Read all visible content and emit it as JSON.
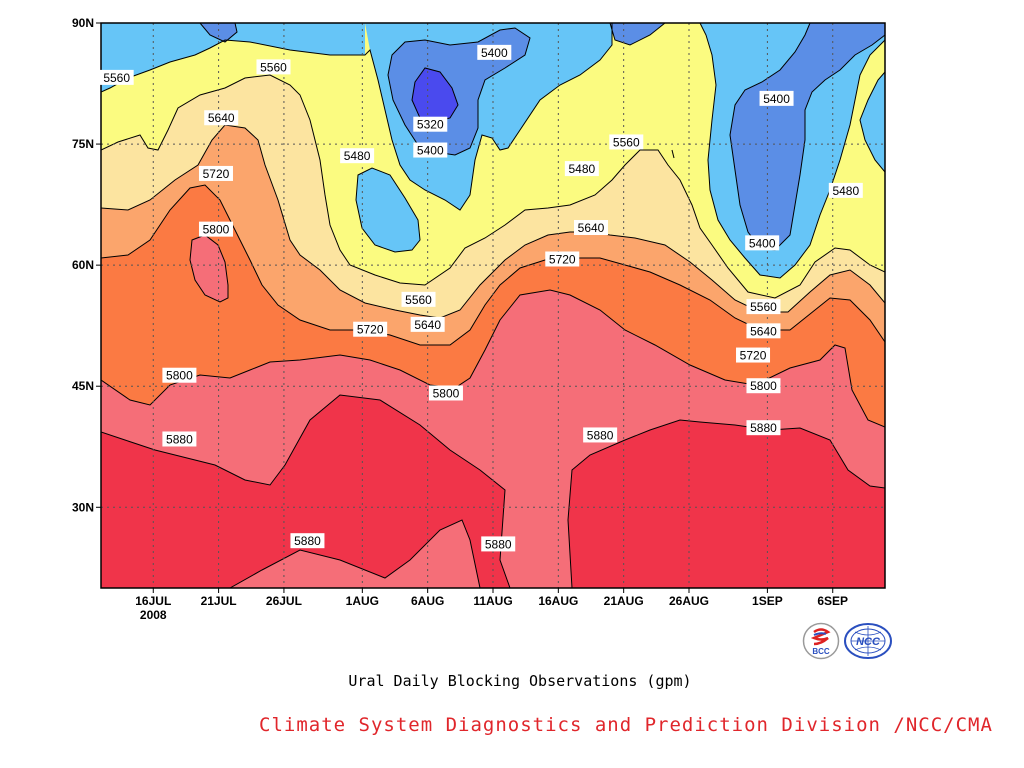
{
  "chart_data": {
    "type": "heatmap",
    "subtype": "filled-contour",
    "title": "Ural Daily Blocking Observations (gpm)",
    "xlabel": "",
    "ylabel": "",
    "x_ticks": [
      {
        "t": 0,
        "label": "16JUL",
        "sub": "2008"
      },
      {
        "t": 5,
        "label": "21JUL"
      },
      {
        "t": 10,
        "label": "26JUL"
      },
      {
        "t": 16,
        "label": "1AUG"
      },
      {
        "t": 21,
        "label": "6AUG"
      },
      {
        "t": 26,
        "label": "11AUG"
      },
      {
        "t": 31,
        "label": "16AUG"
      },
      {
        "t": 36,
        "label": "21AUG"
      },
      {
        "t": 41,
        "label": "26AUG"
      },
      {
        "t": 47,
        "label": "1SEP"
      },
      {
        "t": 52,
        "label": "6SEP"
      }
    ],
    "y_ticks": [
      {
        "lat": 90,
        "label": "90N"
      },
      {
        "lat": 75,
        "label": "75N"
      },
      {
        "lat": 60,
        "label": "60N"
      },
      {
        "lat": 45,
        "label": "45N"
      },
      {
        "lat": 30,
        "label": "30N"
      }
    ],
    "xlim_days": [
      -4,
      56
    ],
    "ylim": [
      20,
      90
    ],
    "grid": true,
    "levels": [
      5320,
      5400,
      5480,
      5560,
      5640,
      5720,
      5800,
      5880
    ],
    "level_colors": {
      "below_5320": "#4a4aee",
      "5320_5400": "#5b8ee6",
      "5400_5480": "#66c5f7",
      "5480_5560": "#fbfb80",
      "5560_5640": "#fce4a0",
      "5640_5720": "#fba56c",
      "5720_5800": "#fb7a43",
      "5800_5880": "#f56e78",
      "above_5880": "#f0344a"
    },
    "contour_labels": [
      {
        "value": "5560",
        "t": -2.8,
        "lat": 83.2
      },
      {
        "value": "5560",
        "t": 9.2,
        "lat": 84.5
      },
      {
        "value": "5640",
        "t": 5.2,
        "lat": 78.2
      },
      {
        "value": "5720",
        "t": 4.8,
        "lat": 71.3
      },
      {
        "value": "5800",
        "t": 4.8,
        "lat": 64.4
      },
      {
        "value": "5480",
        "t": 15.6,
        "lat": 73.5
      },
      {
        "value": "5320",
        "t": 21.2,
        "lat": 77.4
      },
      {
        "value": "5400",
        "t": 21.2,
        "lat": 74.2
      },
      {
        "value": "5400",
        "t": 26.1,
        "lat": 86.3
      },
      {
        "value": "5480",
        "t": 32.8,
        "lat": 71.9
      },
      {
        "value": "5560",
        "t": 36.2,
        "lat": 75.2
      },
      {
        "value": "5640",
        "t": 33.5,
        "lat": 64.6
      },
      {
        "value": "5720",
        "t": 31.3,
        "lat": 60.7
      },
      {
        "value": "5400",
        "t": 47.7,
        "lat": 80.6
      },
      {
        "value": "5480",
        "t": 53.0,
        "lat": 69.2
      },
      {
        "value": "5400",
        "t": 46.6,
        "lat": 62.7
      },
      {
        "value": "5560",
        "t": 20.3,
        "lat": 55.7
      },
      {
        "value": "5640",
        "t": 21.0,
        "lat": 52.6
      },
      {
        "value": "5720",
        "t": 16.6,
        "lat": 52.0
      },
      {
        "value": "5560",
        "t": 46.7,
        "lat": 54.8
      },
      {
        "value": "5640",
        "t": 46.7,
        "lat": 51.8
      },
      {
        "value": "5720",
        "t": 45.9,
        "lat": 48.8
      },
      {
        "value": "5800",
        "t": 2.0,
        "lat": 46.3
      },
      {
        "value": "5800",
        "t": 22.4,
        "lat": 44.1
      },
      {
        "value": "5800",
        "t": 46.7,
        "lat": 45.0
      },
      {
        "value": "5880",
        "t": 2.0,
        "lat": 38.4
      },
      {
        "value": "5880",
        "t": 46.7,
        "lat": 39.8
      },
      {
        "value": "5880",
        "t": 34.2,
        "lat": 38.9
      },
      {
        "value": "5880",
        "t": 11.8,
        "lat": 25.8
      },
      {
        "value": "5880",
        "t": 26.4,
        "lat": 25.4
      }
    ]
  },
  "footer": {
    "text": "Climate System Diagnostics and Prediction Division /NCC/CMA"
  },
  "logos": {
    "left": {
      "text": "BCC"
    },
    "right": {
      "text": "NCC"
    }
  }
}
